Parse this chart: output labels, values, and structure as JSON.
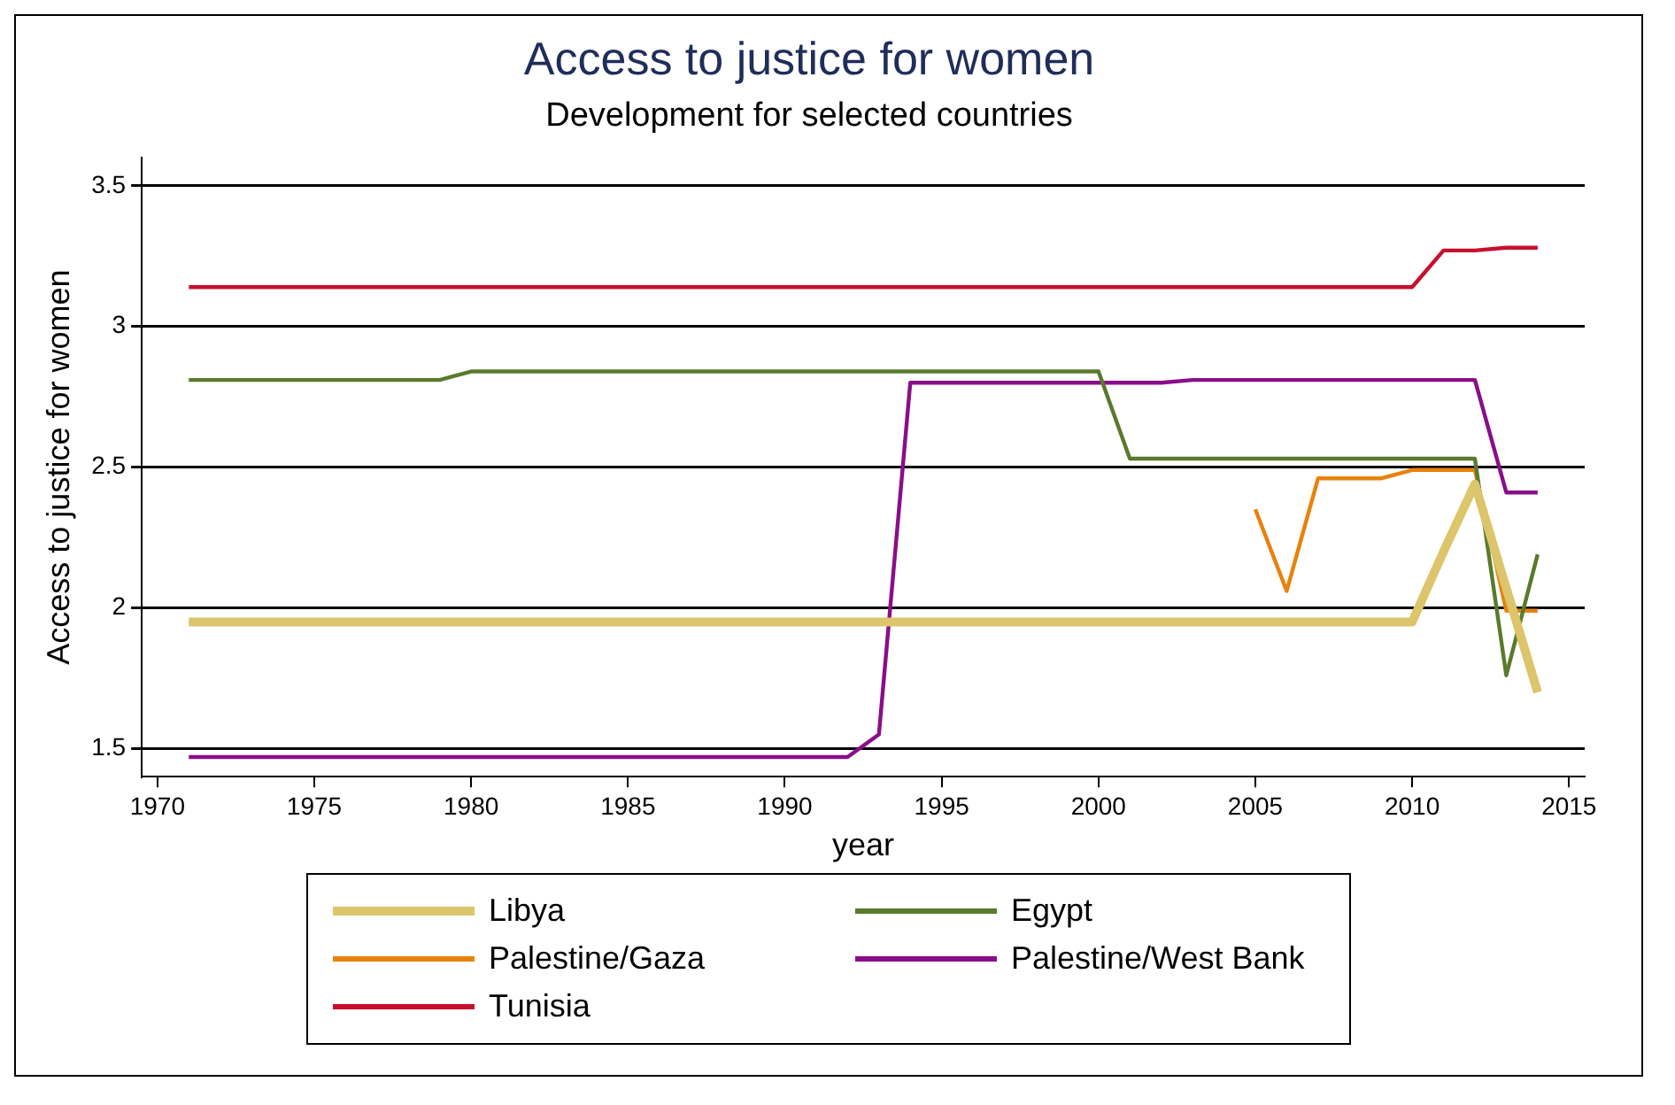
{
  "chart_data": {
    "type": "line",
    "title": "Access to justice for women",
    "subtitle": "Development for selected countries",
    "xlabel": "year",
    "ylabel": "Access to justice for women",
    "x": [
      1971,
      1972,
      1973,
      1974,
      1975,
      1976,
      1977,
      1978,
      1979,
      1980,
      1981,
      1982,
      1983,
      1984,
      1985,
      1986,
      1987,
      1988,
      1989,
      1990,
      1991,
      1992,
      1993,
      1994,
      1995,
      1996,
      1997,
      1998,
      1999,
      2000,
      2001,
      2002,
      2003,
      2004,
      2005,
      2006,
      2007,
      2008,
      2009,
      2010,
      2011,
      2012,
      2013,
      2014
    ],
    "series": [
      {
        "name": "Libya",
        "color": "#dcc56a",
        "values": [
          1.95,
          1.95,
          1.95,
          1.95,
          1.95,
          1.95,
          1.95,
          1.95,
          1.95,
          1.95,
          1.95,
          1.95,
          1.95,
          1.95,
          1.95,
          1.95,
          1.95,
          1.95,
          1.95,
          1.95,
          1.95,
          1.95,
          1.95,
          1.95,
          1.95,
          1.95,
          1.95,
          1.95,
          1.95,
          1.95,
          1.95,
          1.95,
          1.95,
          1.95,
          1.95,
          1.95,
          1.95,
          1.95,
          1.95,
          1.95,
          2.2,
          2.44,
          2.07,
          1.7
        ]
      },
      {
        "name": "Egypt",
        "color": "#5a7a2c",
        "values": [
          2.81,
          2.81,
          2.81,
          2.81,
          2.81,
          2.81,
          2.81,
          2.81,
          2.81,
          2.84,
          2.84,
          2.84,
          2.84,
          2.84,
          2.84,
          2.84,
          2.84,
          2.84,
          2.84,
          2.84,
          2.84,
          2.84,
          2.84,
          2.84,
          2.84,
          2.84,
          2.84,
          2.84,
          2.84,
          2.84,
          2.53,
          2.53,
          2.53,
          2.53,
          2.53,
          2.53,
          2.53,
          2.53,
          2.53,
          2.53,
          2.53,
          2.53,
          1.76,
          2.19
        ]
      },
      {
        "name": "Palestine/Gaza",
        "color": "#e8820c",
        "values": [
          null,
          null,
          null,
          null,
          null,
          null,
          null,
          null,
          null,
          null,
          null,
          null,
          null,
          null,
          null,
          null,
          null,
          null,
          null,
          null,
          null,
          null,
          null,
          null,
          null,
          null,
          null,
          null,
          null,
          null,
          null,
          null,
          null,
          null,
          2.35,
          2.06,
          2.46,
          2.46,
          2.46,
          2.49,
          2.49,
          2.49,
          1.99,
          1.99
        ]
      },
      {
        "name": "Palestine/West Bank",
        "color": "#8a0e8a",
        "values": [
          1.47,
          1.47,
          1.47,
          1.47,
          1.47,
          1.47,
          1.47,
          1.47,
          1.47,
          1.47,
          1.47,
          1.47,
          1.47,
          1.47,
          1.47,
          1.47,
          1.47,
          1.47,
          1.47,
          1.47,
          1.47,
          1.47,
          1.55,
          2.8,
          2.8,
          2.8,
          2.8,
          2.8,
          2.8,
          2.8,
          2.8,
          2.8,
          2.81,
          2.81,
          2.81,
          2.81,
          2.81,
          2.81,
          2.81,
          2.81,
          2.81,
          2.81,
          2.41,
          2.41
        ]
      },
      {
        "name": "Tunisia",
        "color": "#c8102e",
        "values": [
          3.14,
          3.14,
          3.14,
          3.14,
          3.14,
          3.14,
          3.14,
          3.14,
          3.14,
          3.14,
          3.14,
          3.14,
          3.14,
          3.14,
          3.14,
          3.14,
          3.14,
          3.14,
          3.14,
          3.14,
          3.14,
          3.14,
          3.14,
          3.14,
          3.14,
          3.14,
          3.14,
          3.14,
          3.14,
          3.14,
          3.14,
          3.14,
          3.14,
          3.14,
          3.14,
          3.14,
          3.14,
          3.14,
          3.14,
          3.14,
          3.27,
          3.27,
          3.28,
          3.28
        ]
      }
    ],
    "xlim": [
      1969.5,
      2015.5
    ],
    "xticks": [
      1970,
      1975,
      1980,
      1985,
      1990,
      1995,
      2000,
      2005,
      2010,
      2015
    ],
    "ylim": [
      1.4,
      3.6
    ],
    "yticks": [
      1.5,
      2,
      2.5,
      3,
      3.5
    ],
    "grid": "y",
    "legend": "bottom",
    "marker": "none",
    "line_style": "solid"
  }
}
